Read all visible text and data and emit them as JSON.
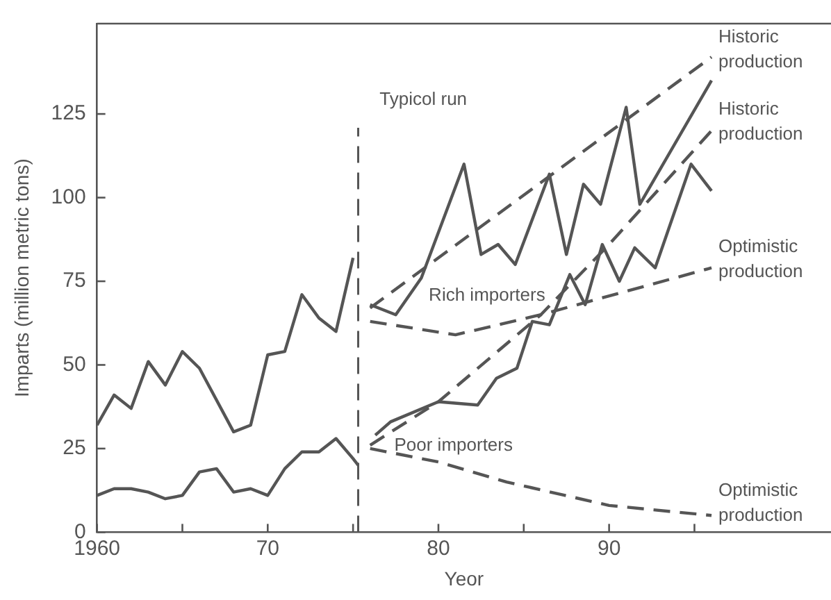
{
  "chart_data": {
    "type": "line",
    "xlabel": "Yeor",
    "ylabel": "Imparts (million metric tons)",
    "xlim": [
      1960,
      2003
    ],
    "ylim": [
      0,
      152
    ],
    "xticks": [
      {
        "value": 1960,
        "label": "1960"
      },
      {
        "value": 1965,
        "label": null
      },
      {
        "value": 1970,
        "label": "70"
      },
      {
        "value": 1975,
        "label": null
      },
      {
        "value": 1980,
        "label": "80"
      },
      {
        "value": 1985,
        "label": null
      },
      {
        "value": 1990,
        "label": "90"
      },
      {
        "value": 1995,
        "label": null
      }
    ],
    "yticks": [
      0,
      25,
      50,
      75,
      100,
      125
    ],
    "grid": false,
    "legend": false,
    "marker": "none",
    "series": [
      {
        "color": "#555555",
        "line_style": "solid",
        "x": [
          1960,
          1961,
          1962,
          1963,
          1964,
          1965,
          1966,
          1968,
          1969,
          1970,
          1971,
          1972,
          1973,
          1974,
          1975
        ],
        "values": [
          32,
          41,
          37,
          51,
          44,
          54,
          49,
          30,
          32,
          53,
          54,
          71,
          64,
          60,
          82
        ]
      },
      {
        "color": "#555555",
        "line_style": "solid",
        "x": [
          1960,
          1961,
          1962,
          1963,
          1964,
          1965,
          1966,
          1967,
          1968,
          1969,
          1970,
          1971,
          1972,
          1973,
          1974,
          1975,
          1975.3
        ],
        "values": [
          11,
          13,
          13,
          12,
          10,
          11,
          18,
          19,
          12,
          13,
          11,
          19,
          24,
          24,
          28,
          22,
          20
        ]
      },
      {
        "name": "Historic production",
        "color": "#555555",
        "line_style": "dashed",
        "x": [
          1976,
          1996
        ],
        "values": [
          67,
          142
        ]
      },
      {
        "name": "Historic production",
        "color": "#555555",
        "line_style": "dashed",
        "x": [
          1976,
          1980,
          1986,
          1990,
          1996
        ],
        "values": [
          26,
          39,
          65,
          86,
          120
        ]
      },
      {
        "name": "Optimistic production",
        "color": "#555555",
        "line_style": "dashed",
        "x": [
          1976,
          1981,
          1986,
          1996
        ],
        "values": [
          63,
          59,
          65,
          79
        ]
      },
      {
        "name": "Optimistic production",
        "color": "#555555",
        "line_style": "dashed",
        "x": [
          1976,
          1980,
          1984,
          1990,
          1996
        ],
        "values": [
          25,
          21,
          15,
          8,
          5
        ]
      },
      {
        "color": "#555555",
        "line_style": "solid",
        "x": [
          1976,
          1977.5,
          1979,
          1981.5,
          1982.5,
          1983.5,
          1984.5,
          1986.5,
          1987.5,
          1988.5,
          1989.5,
          1991,
          1991.8,
          1996
        ],
        "values": [
          68,
          65,
          76,
          110,
          83,
          86,
          80,
          107,
          83,
          104,
          98,
          127,
          98,
          135
        ]
      },
      {
        "color": "#555555",
        "line_style": "solid",
        "x": [
          1976.3,
          1977.2,
          1980,
          1982.3,
          1983.4,
          1984.6,
          1985.5,
          1986.5,
          1987.7,
          1988.6,
          1989.6,
          1990.6,
          1991.5,
          1992.7,
          1994.8,
          1996
        ],
        "values": [
          29,
          33,
          39,
          38,
          46,
          49,
          63,
          62,
          77,
          68,
          86,
          75,
          85,
          79,
          110,
          102
        ]
      }
    ],
    "ref_lines": [
      {
        "axis": "x",
        "value": 1975.3,
        "line_style": "dashed"
      }
    ],
    "annotations": [
      "Typicol run",
      "Rich importers",
      "Poor importers"
    ]
  }
}
